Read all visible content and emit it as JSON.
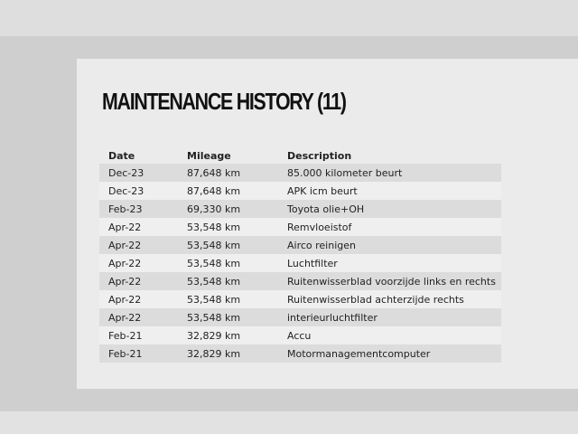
{
  "header": {
    "title": "MAINTENANCE HISTORY (11)"
  },
  "table": {
    "columns": [
      "Date",
      "Mileage",
      "Description"
    ],
    "rows": [
      [
        "Dec-23",
        "87,648 km",
        "85.000 kilometer beurt"
      ],
      [
        "Dec-23",
        "87,648 km",
        "APK icm beurt"
      ],
      [
        "Feb-23",
        "69,330 km",
        "Toyota olie+OH"
      ],
      [
        "Apr-22",
        "53,548 km",
        "Remvloeistof"
      ],
      [
        "Apr-22",
        "53,548 km",
        "Airco reinigen"
      ],
      [
        "Apr-22",
        "53,548 km",
        "Luchtfilter"
      ],
      [
        "Apr-22",
        "53,548 km",
        "Ruitenwisserblad voorzijde links en rechts"
      ],
      [
        "Apr-22",
        "53,548 km",
        "Ruitenwisserblad achterzijde rechts"
      ],
      [
        "Apr-22",
        "53,548 km",
        "interieurluchtfilter"
      ],
      [
        "Feb-21",
        "32,829 km",
        "Accu"
      ],
      [
        "Feb-21",
        "32,829 km",
        "Motormanagementcomputer"
      ]
    ]
  }
}
